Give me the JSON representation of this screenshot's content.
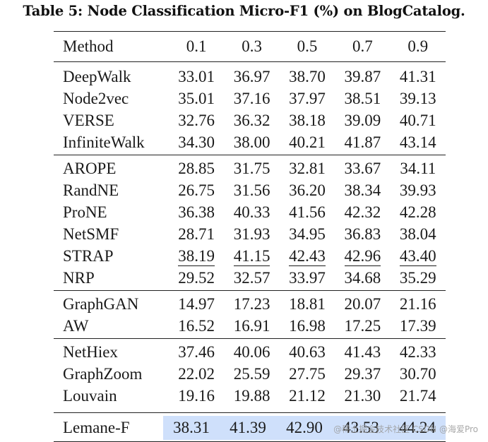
{
  "caption": "Table 5: Node Classification Micro-F1 (%) on BlogCatalog.",
  "header": [
    "Method",
    "0.1",
    "0.3",
    "0.5",
    "0.7",
    "0.9"
  ],
  "groups": [
    [
      {
        "method": "DeepWalk",
        "values": [
          "33.01",
          "36.97",
          "38.70",
          "39.87",
          "41.31"
        ]
      },
      {
        "method": "Node2vec",
        "values": [
          "35.01",
          "37.16",
          "37.97",
          "38.51",
          "39.13"
        ]
      },
      {
        "method": "VERSE",
        "values": [
          "32.76",
          "36.32",
          "38.18",
          "39.09",
          "40.71"
        ]
      },
      {
        "method": "InfiniteWalk",
        "values": [
          "34.30",
          "38.00",
          "40.21",
          "41.87",
          "43.14"
        ]
      }
    ],
    [
      {
        "method": "AROPE",
        "values": [
          "28.85",
          "31.75",
          "32.81",
          "33.67",
          "34.11"
        ]
      },
      {
        "method": "RandNE",
        "values": [
          "26.75",
          "31.56",
          "36.20",
          "38.34",
          "39.93"
        ]
      },
      {
        "method": "ProNE",
        "values": [
          "36.38",
          "40.33",
          "41.56",
          "42.32",
          "42.28"
        ]
      },
      {
        "method": "NetSMF",
        "values": [
          "28.71",
          "31.93",
          "34.95",
          "36.83",
          "38.04"
        ]
      },
      {
        "method": "STRAP",
        "values": [
          "38.19",
          "41.15",
          "42.43",
          "42.96",
          "43.40"
        ],
        "underline": true
      },
      {
        "method": "NRP",
        "values": [
          "29.52",
          "32.57",
          "33.97",
          "34.68",
          "35.29"
        ]
      }
    ],
    [
      {
        "method": "GraphGAN",
        "values": [
          "14.97",
          "17.23",
          "18.81",
          "20.07",
          "21.16"
        ]
      },
      {
        "method": "AW",
        "values": [
          "16.52",
          "16.91",
          "16.98",
          "17.25",
          "17.39"
        ]
      }
    ],
    [
      {
        "method": "NetHiex",
        "values": [
          "37.46",
          "40.06",
          "40.63",
          "41.43",
          "42.33"
        ]
      },
      {
        "method": "GraphZoom",
        "values": [
          "22.02",
          "25.59",
          "27.75",
          "29.37",
          "30.70"
        ]
      },
      {
        "method": "Louvain",
        "values": [
          "19.16",
          "19.88",
          "21.12",
          "21.30",
          "21.74"
        ]
      }
    ]
  ],
  "final": {
    "method": "Lemane-F",
    "values": [
      "38.31",
      "41.39",
      "42.90",
      "43.53",
      "44.24"
    ]
  },
  "highlight_color": "#cfe0fb",
  "watermark": "@稀土掘金技术社区 CSDN @海爱Pro"
}
